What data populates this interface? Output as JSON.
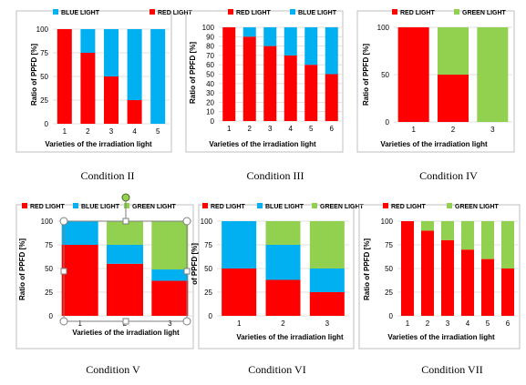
{
  "colors": {
    "red": "#ff0000",
    "blue": "#00b0f0",
    "green": "#92d050"
  },
  "chart_data": [
    {
      "type": "bar",
      "stacked": true,
      "caption": "Condition II",
      "categories": [
        "1",
        "2",
        "3",
        "4",
        "5"
      ],
      "series": [
        {
          "name": "RED LIGHT",
          "color": "red",
          "values": [
            100,
            75,
            50,
            25,
            0
          ]
        },
        {
          "name": "BLUE LIGHT",
          "color": "blue",
          "values": [
            0,
            25,
            50,
            75,
            100
          ]
        }
      ],
      "legend_order": [
        1,
        0
      ],
      "ylabel": "Ratio of PPFD [%]",
      "xlabel": "Varieties of the irradiation light",
      "yticks": [
        0,
        25,
        50,
        75,
        100
      ],
      "ylim": [
        0,
        100
      ]
    },
    {
      "type": "bar",
      "stacked": true,
      "caption": "Condition III",
      "categories": [
        "1",
        "2",
        "3",
        "4",
        "5",
        "6"
      ],
      "series": [
        {
          "name": "RED LIGHT",
          "color": "red",
          "values": [
            100,
            90,
            80,
            70,
            60,
            50
          ]
        },
        {
          "name": "BLUE LIGHT",
          "color": "blue",
          "values": [
            0,
            10,
            20,
            30,
            40,
            50
          ]
        }
      ],
      "legend_order": [
        0,
        1
      ],
      "ylabel": "Ratio of PPFD [%]",
      "xlabel": "Varieties of the irradiation light",
      "yticks": [
        0,
        10,
        20,
        30,
        40,
        50,
        60,
        70,
        80,
        90,
        100
      ],
      "ylim": [
        0,
        100
      ]
    },
    {
      "type": "bar",
      "stacked": true,
      "caption": "Condition IV",
      "categories": [
        "1",
        "2",
        "3"
      ],
      "series": [
        {
          "name": "RED LIGHT",
          "color": "red",
          "values": [
            100,
            50,
            0
          ]
        },
        {
          "name": "GREEN LIGHT",
          "color": "green",
          "values": [
            0,
            50,
            100
          ]
        }
      ],
      "legend_order": [
        0,
        1
      ],
      "ylabel": "Ratio of PPFD [%]",
      "xlabel": "Varieties of the irradiation light",
      "yticks": [
        0,
        50,
        100
      ],
      "ylim": [
        0,
        100
      ]
    },
    {
      "type": "bar",
      "stacked": true,
      "caption": "Condition V",
      "categories": [
        "1",
        "2",
        "3"
      ],
      "series": [
        {
          "name": "RED LIGHT",
          "color": "red",
          "values": [
            75,
            55,
            37
          ]
        },
        {
          "name": "BLUE LIGHT",
          "color": "blue",
          "values": [
            25,
            20,
            12
          ]
        },
        {
          "name": "GREEN LIGHT",
          "color": "green",
          "values": [
            0,
            25,
            51
          ]
        }
      ],
      "legend_order": [
        0,
        1,
        2
      ],
      "ylabel": "Ratio of PPFD [%]",
      "xlabel": "Varieties of the irradiation light",
      "yticks": [
        0,
        25,
        50,
        75,
        100
      ],
      "ylim": [
        0,
        100
      ]
    },
    {
      "type": "bar",
      "stacked": true,
      "caption": "Condition VI",
      "categories": [
        "1",
        "2",
        "3"
      ],
      "series": [
        {
          "name": "RED LIGHT",
          "color": "red",
          "values": [
            50,
            38,
            25
          ]
        },
        {
          "name": "BLUE LIGHT",
          "color": "blue",
          "values": [
            50,
            37,
            25
          ]
        },
        {
          "name": "GREEN LIGHT",
          "color": "green",
          "values": [
            0,
            25,
            50
          ]
        }
      ],
      "legend_order": [
        0,
        1,
        2
      ],
      "ylabel": "of PPFD [%]",
      "xlabel": "Varieties of the irradiation light",
      "yticks": [
        0,
        25,
        50,
        75,
        100
      ],
      "ylim": [
        0,
        100
      ]
    },
    {
      "type": "bar",
      "stacked": true,
      "caption": "Condition VII",
      "categories": [
        "1",
        "2",
        "3",
        "4",
        "5",
        "6"
      ],
      "series": [
        {
          "name": "RED LIGHT",
          "color": "red",
          "values": [
            100,
            90,
            80,
            70,
            60,
            50
          ]
        },
        {
          "name": "GREEN LIGHT",
          "color": "green",
          "values": [
            0,
            10,
            20,
            30,
            40,
            50
          ]
        }
      ],
      "legend_order": [
        0,
        1
      ],
      "ylabel": "Ratio of PPFD [%]",
      "xlabel": "Varieties of the irradiation light",
      "yticks": [
        0,
        25,
        50,
        75,
        100
      ],
      "ylim": [
        0,
        100
      ]
    }
  ]
}
